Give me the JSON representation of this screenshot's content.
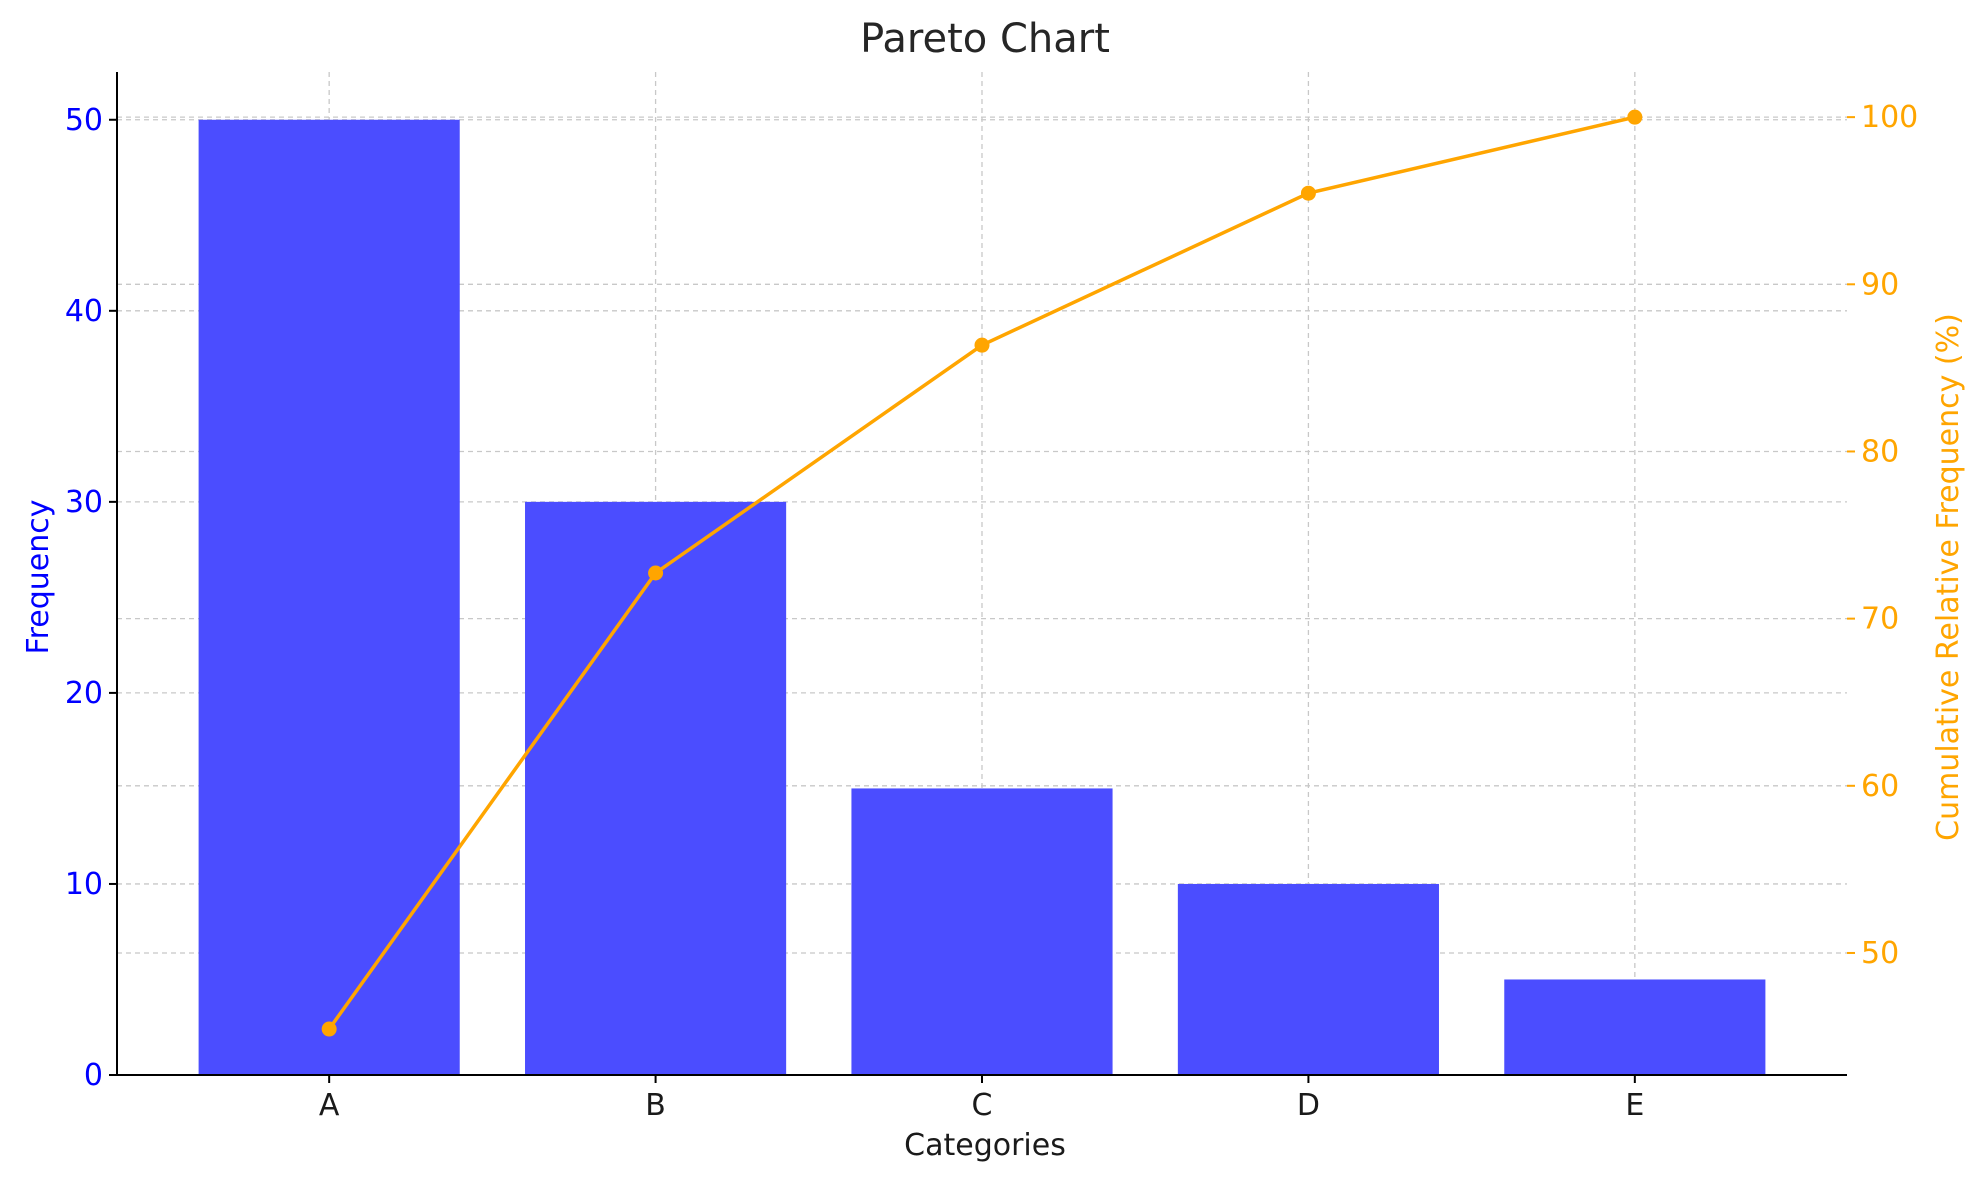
{
  "chart_data": {
    "type": "bar",
    "title": "Pareto Chart",
    "xlabel": "Categories",
    "categories": [
      "A",
      "B",
      "C",
      "D",
      "E"
    ],
    "series": [
      {
        "name": "Frequency",
        "type": "bar",
        "axis": "left",
        "values": [
          50,
          30,
          15,
          10,
          5
        ],
        "color": "#4b4dff"
      },
      {
        "name": "Cumulative Relative Frequency (%)",
        "type": "line",
        "axis": "right",
        "values": [
          45.45,
          72.73,
          86.36,
          95.45,
          100.0
        ],
        "color": "#ffa500"
      }
    ],
    "left_axis": {
      "label": "Frequency",
      "ylim": [
        0,
        52.5
      ],
      "ticks": [
        0,
        10,
        20,
        30,
        40,
        50
      ],
      "color": "#0000ff"
    },
    "right_axis": {
      "label": "Cumulative Relative Frequency (%)",
      "ylim": [
        42.7,
        102.7
      ],
      "ticks": [
        50,
        60,
        70,
        80,
        90,
        100
      ],
      "color": "#ffa500"
    },
    "grid": true
  }
}
